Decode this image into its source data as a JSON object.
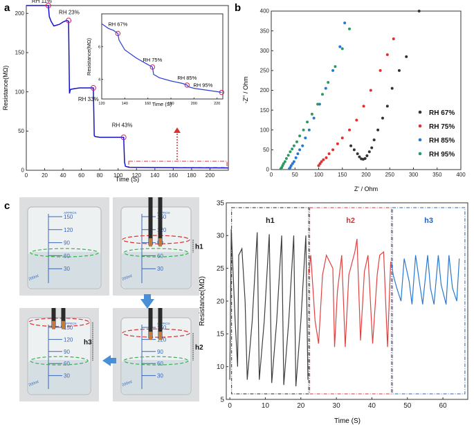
{
  "panel_labels": {
    "a": "a",
    "b": "b",
    "c": "c"
  },
  "chart_data": [
    {
      "id": "a",
      "type": "line",
      "xlabel": "Time (S)",
      "ylabel": "Resistance(MΩ)",
      "xlim": [
        0,
        220
      ],
      "ylim": [
        0,
        210
      ],
      "xticks": [
        "0",
        "20",
        "40",
        "60",
        "80",
        "100",
        "120",
        "140",
        "160",
        "180",
        "200"
      ],
      "yticks": [
        "0",
        "50",
        "100",
        "150",
        "200"
      ],
      "series": [
        {
          "name": "resistance",
          "color": "#1010d0",
          "x": [
            0,
            24,
            25,
            27,
            30,
            36,
            40,
            44,
            46,
            47,
            48,
            52,
            58,
            64,
            70,
            73,
            74,
            75,
            80,
            90,
            100,
            106,
            107,
            108,
            112,
            120,
            140,
            160,
            180,
            200,
            220
          ],
          "y": [
            210,
            210,
            196,
            190,
            184,
            186,
            189,
            191,
            190,
            98,
            103,
            104,
            105,
            105,
            105,
            105,
            44,
            43,
            42,
            42,
            42,
            42,
            10,
            5,
            3.8,
            3.6,
            3.4,
            3.3,
            3.2,
            3.1,
            3.0
          ]
        }
      ],
      "annotations": [
        {
          "text": "RH 11%",
          "x": 24,
          "y": 210
        },
        {
          "text": "RH 23%",
          "x": 46,
          "y": 191
        },
        {
          "text": "RH 33%",
          "x": 73,
          "y": 105
        },
        {
          "text": "RH 43%",
          "x": 106,
          "y": 42
        }
      ],
      "inset": {
        "xlabel": "Time (S)",
        "ylabel": "Resistance(MΩ)",
        "xlim": [
          120,
          225
        ],
        "ylim": [
          2.8,
          8
        ],
        "xticks": [
          "120",
          "140",
          "160",
          "180",
          "200",
          "220"
        ],
        "yticks": [
          "4",
          "6"
        ],
        "x": [
          120,
          122,
          126,
          130,
          134,
          135,
          140,
          150,
          160,
          164,
          165,
          170,
          180,
          190,
          194,
          195,
          200,
          210,
          220,
          224
        ],
        "y": [
          7.4,
          7.3,
          7.1,
          7.0,
          6.8,
          6.4,
          5.8,
          5.3,
          4.9,
          4.75,
          4.3,
          4.1,
          3.9,
          3.75,
          3.65,
          3.55,
          3.45,
          3.35,
          3.25,
          3.2
        ],
        "annotations": [
          {
            "text": "RH 67%",
            "x": 134,
            "y": 6.8
          },
          {
            "text": "RH 75%",
            "x": 164,
            "y": 4.75
          },
          {
            "text": "RH 85%",
            "x": 194,
            "y": 3.65
          },
          {
            "text": "RH 95%",
            "x": 224,
            "y": 3.2
          }
        ]
      }
    },
    {
      "id": "b",
      "type": "scatter",
      "xlabel": "Z' / Ohm",
      "ylabel": "-Z'' / Ohm",
      "xlim": [
        0,
        400
      ],
      "ylim": [
        0,
        400
      ],
      "xticks": [
        "0",
        "50",
        "100",
        "150",
        "200",
        "250",
        "300",
        "350",
        "400"
      ],
      "yticks": [
        "0",
        "50",
        "100",
        "150",
        "200",
        "250",
        "300",
        "350",
        "400"
      ],
      "series": [
        {
          "name": "RH 67%",
          "color": "#333333",
          "x": [
            168,
            175,
            182,
            186,
            190,
            194,
            198,
            202,
            207,
            212,
            217,
            225,
            235,
            245,
            255,
            270,
            285,
            312
          ],
          "y": [
            60,
            50,
            40,
            32,
            27,
            26,
            28,
            35,
            45,
            55,
            75,
            100,
            130,
            160,
            205,
            250,
            285,
            400
          ]
        },
        {
          "name": "RH 75%",
          "color": "#e03030",
          "x": [
            100,
            103,
            106,
            110,
            116,
            122,
            130,
            140,
            150,
            165,
            180,
            195,
            210,
            230,
            245,
            258
          ],
          "y": [
            10,
            15,
            20,
            25,
            30,
            40,
            50,
            65,
            80,
            100,
            125,
            160,
            200,
            250,
            290,
            330
          ]
        },
        {
          "name": "RH 85%",
          "color": "#2878d0",
          "x": [
            38,
            40,
            42,
            45,
            48,
            52,
            56,
            60,
            66,
            72,
            80,
            90,
            102,
            115,
            130,
            145,
            155
          ],
          "y": [
            2,
            5,
            10,
            15,
            20,
            30,
            40,
            50,
            60,
            80,
            100,
            130,
            165,
            205,
            250,
            310,
            370
          ]
        },
        {
          "name": "RH 95%",
          "color": "#2a9a60",
          "x": [
            20,
            22,
            24,
            26,
            29,
            32,
            36,
            40,
            44,
            48,
            54,
            60,
            68,
            76,
            86,
            98,
            108,
            120,
            135,
            150,
            165
          ],
          "y": [
            2,
            5,
            10,
            15,
            20,
            28,
            36,
            45,
            52,
            60,
            70,
            85,
            100,
            120,
            140,
            165,
            190,
            220,
            260,
            305,
            355
          ]
        }
      ],
      "legend": [
        "RH 67%",
        "RH 75%",
        "RH 85%",
        "RH 95%"
      ]
    },
    {
      "id": "c",
      "type": "line",
      "xlabel": "Time (S)",
      "ylabel": "Resistance(MΩ)",
      "xlim": [
        -1,
        67
      ],
      "ylim": [
        5,
        35
      ],
      "xticks": [
        "0",
        "10",
        "20",
        "30",
        "40",
        "50",
        "60"
      ],
      "yticks": [
        "5",
        "10",
        "15",
        "20",
        "25",
        "30",
        "35"
      ],
      "series": [
        {
          "name": "h1",
          "color": "#3d3d3d",
          "x": [
            0,
            0.4,
            1.5,
            2.2,
            2.5,
            3.4,
            4.3,
            4.9,
            6.3,
            7.7,
            8.3,
            9.7,
            11.1,
            11.8,
            13.2,
            14.6,
            15.2,
            16.6,
            18.0,
            18.6,
            20.0,
            21.4,
            22.0
          ],
          "y": [
            8,
            31,
            17,
            10,
            27,
            28,
            20,
            8,
            17,
            30.5,
            8,
            17,
            30.2,
            7.5,
            17,
            30,
            7.2,
            17,
            30,
            7,
            17,
            30,
            8
          ]
        },
        {
          "name": "h2",
          "color": "#e04040",
          "x": [
            22.2,
            22.8,
            24.0,
            25.0,
            26.1,
            27.2,
            29.0,
            29.5,
            30.3,
            31.5,
            32.5,
            33.5,
            35.2,
            35.8,
            36.8,
            37.9,
            38.9,
            40.2,
            41.5,
            42.2,
            43.3,
            44.4,
            45.3
          ],
          "y": [
            24,
            27,
            17,
            13.5,
            24,
            27,
            25,
            13,
            21.5,
            27,
            13,
            24,
            27.5,
            29.5,
            14,
            24.5,
            27,
            13.5,
            24,
            27,
            27.5,
            13,
            26
          ]
        },
        {
          "name": "h3",
          "color": "#2878d0",
          "x": [
            45.5,
            46.0,
            47.0,
            48.2,
            49.1,
            50.5,
            51.3,
            52.3,
            53.5,
            54.3,
            55.7,
            56.5,
            57.5,
            58.7,
            59.5,
            60.9,
            61.7,
            62.7,
            63.9,
            64.6
          ],
          "y": [
            26,
            24,
            22,
            20,
            26.5,
            23,
            19.5,
            27,
            22.5,
            19.5,
            27,
            22,
            19.5,
            27,
            22.5,
            19.5,
            27,
            22,
            20,
            26.5
          ]
        }
      ],
      "regions": [
        {
          "label": "h1",
          "color": "#222222",
          "x0": 0.5,
          "x1": 22.2
        },
        {
          "label": "h2",
          "color": "#e03030",
          "x0": 22.5,
          "x1": 45.5
        },
        {
          "label": "h3",
          "color": "#2060c0",
          "x0": 45.8,
          "x1": 66.2
        }
      ]
    }
  ],
  "photos": {
    "beaker_scale": [
      "150",
      "120",
      "90",
      "60",
      "30"
    ],
    "approx_label": "APPROX",
    "volume_label": "200ml",
    "h_labels": [
      "h1",
      "h2",
      "h3"
    ]
  }
}
